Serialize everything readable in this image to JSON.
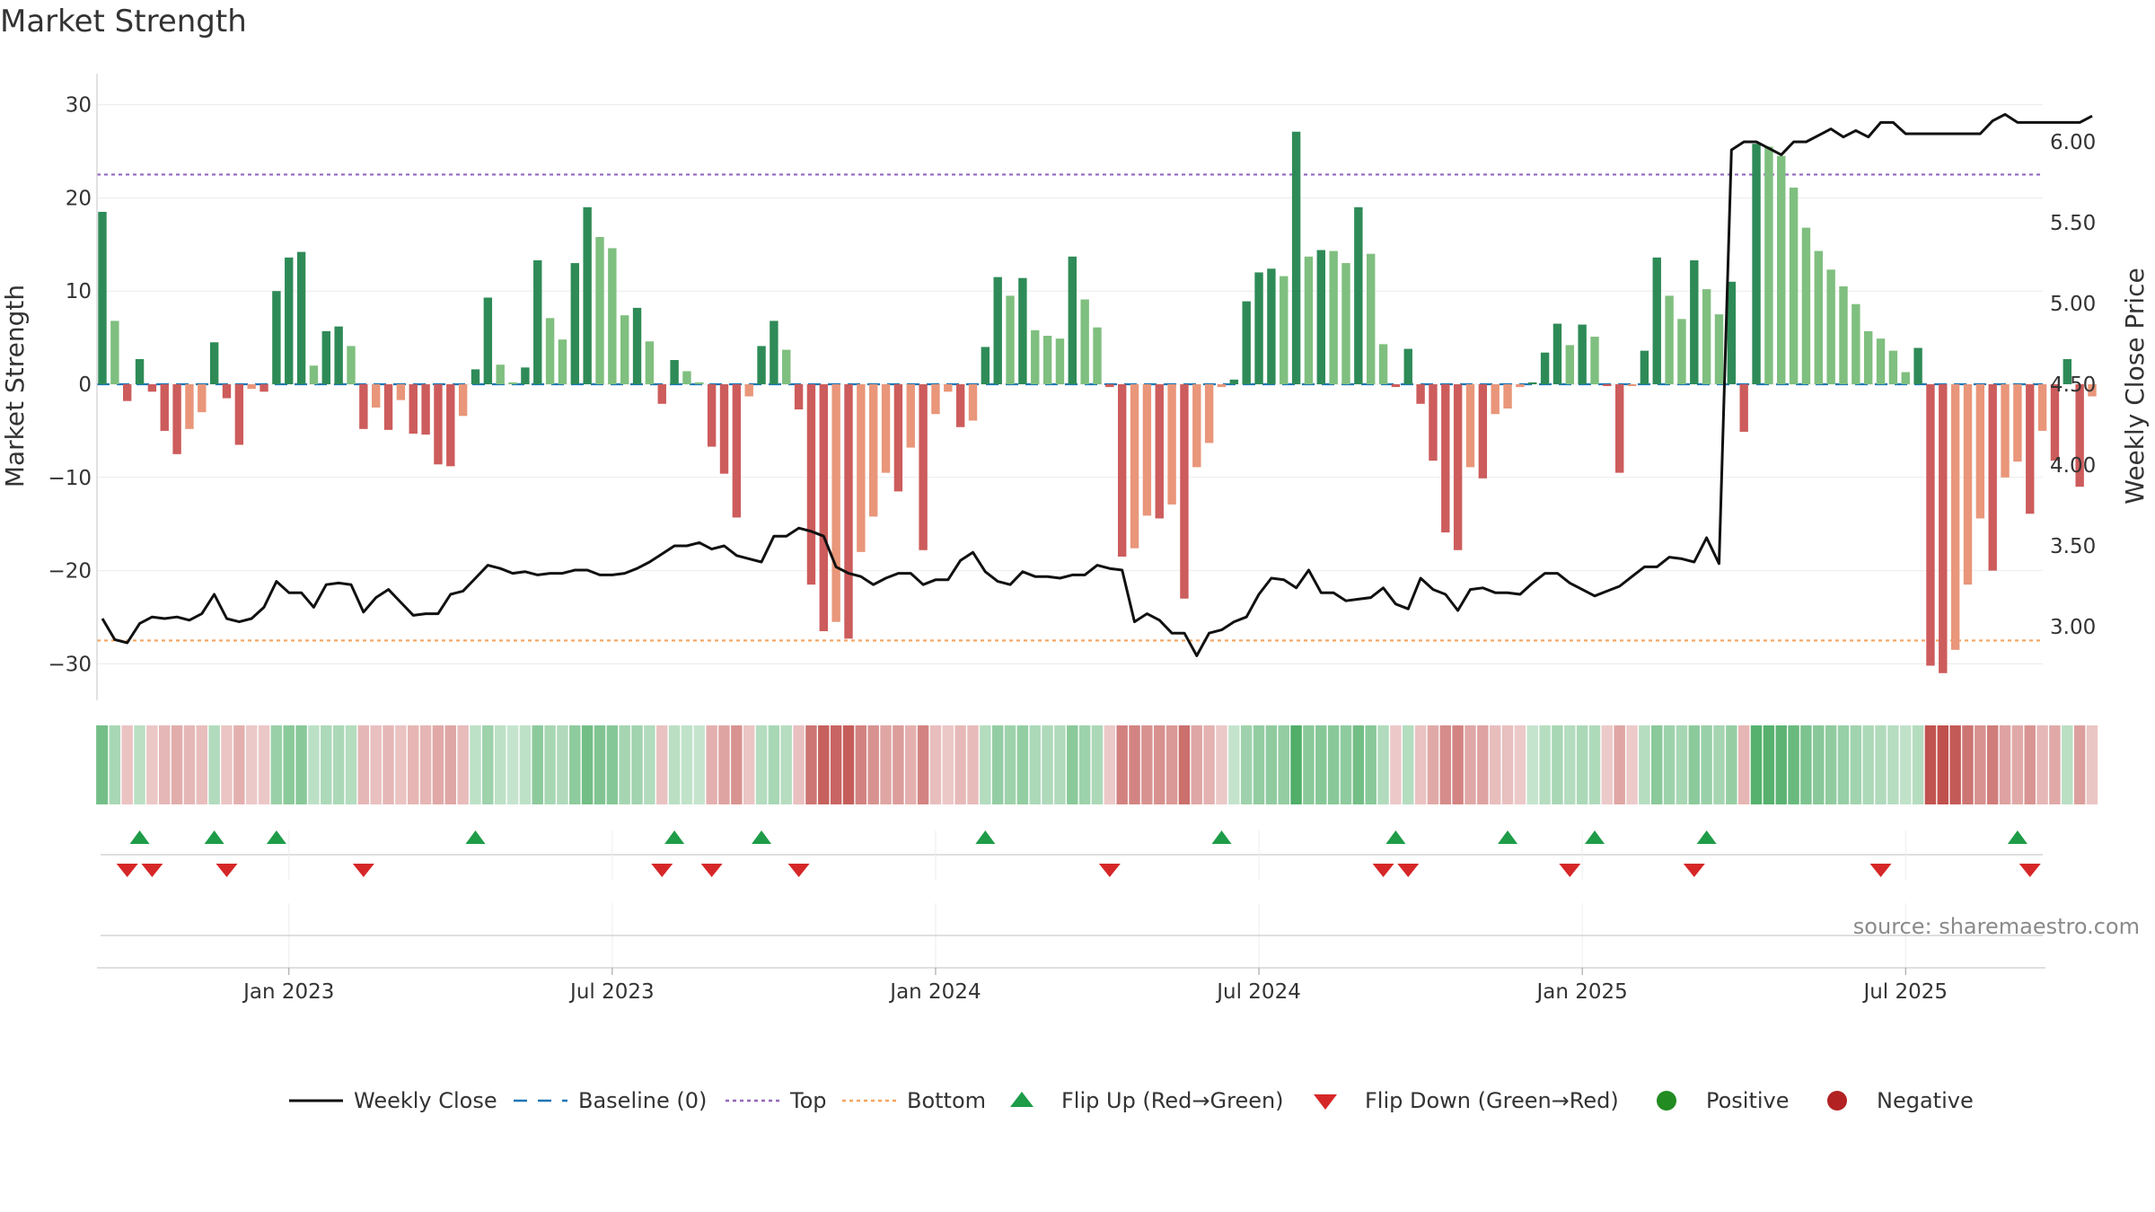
{
  "page": {
    "title": "Market Strength"
  },
  "chart_data": {
    "type": "bar",
    "title": "Market Strength",
    "ylabel_left": "Market Strength",
    "ylabel_right": "Weekly Close Price",
    "ylim_left": [
      -34,
      30.5
    ],
    "ylim_right": [
      2.6,
      6.3
    ],
    "left_ticks": [
      30,
      20,
      10,
      0,
      -10,
      -20,
      -30
    ],
    "left_tick_labels": [
      "30",
      "20",
      "10",
      "0",
      "−10",
      "−20",
      "−30"
    ],
    "right_ticks": [
      6.0,
      5.5,
      5.0,
      4.5,
      4.0,
      3.5,
      3.0
    ],
    "right_tick_labels": [
      "6.00",
      "5.50",
      "5.00",
      "4.50",
      "4.00",
      "3.50",
      "3.00"
    ],
    "x_ticks": [
      {
        "week": 15,
        "label": "Jan 2023"
      },
      {
        "week": 41,
        "label": "Jul 2023"
      },
      {
        "week": 67,
        "label": "Jan 2024"
      },
      {
        "week": 93,
        "label": "Jul 2024"
      },
      {
        "week": 119,
        "label": "Jan 2025"
      },
      {
        "week": 145,
        "label": "Jul 2025"
      }
    ],
    "top_level": 22.5,
    "bottom_level": -27.5,
    "strength": [
      18.5,
      6.8,
      -1.8,
      2.7,
      -0.8,
      -5,
      -7.5,
      -4.8,
      -3,
      4.5,
      -1.5,
      -6.5,
      -0.5,
      -0.8,
      10,
      13.6,
      14.2,
      2,
      5.7,
      6.2,
      4.1,
      -4.8,
      -2.5,
      -4.9,
      -1.7,
      -5.3,
      -5.4,
      -8.6,
      -8.8,
      -3.4,
      1.6,
      9.3,
      2.1,
      0.2,
      1.8,
      13.3,
      7.1,
      4.8,
      13,
      19,
      15.8,
      14.6,
      7.4,
      8.2,
      4.6,
      -2.1,
      2.6,
      1.4,
      0.2,
      -6.7,
      -9.6,
      -14.3,
      -1.3,
      4.1,
      6.8,
      3.7,
      -2.7,
      -21.5,
      -26.5,
      -25.5,
      -27.3,
      -18,
      -14.2,
      -9.5,
      -11.5,
      -6.8,
      -17.8,
      -3.2,
      -0.8,
      -4.6,
      -3.9,
      4,
      11.5,
      9.5,
      11.4,
      5.8,
      5.2,
      4.9,
      13.7,
      9.1,
      6.1,
      -0.3,
      -18.5,
      -17.6,
      -14.1,
      -14.4,
      -12.9,
      -23,
      -8.9,
      -6.3,
      -0.3,
      0.5,
      8.9,
      12,
      12.4,
      11.6,
      27.1,
      13.7,
      14.4,
      14.3,
      13,
      19,
      14,
      4.3,
      -0.3,
      3.8,
      -2.1,
      -8.2,
      -15.9,
      -17.8,
      -8.9,
      -10.1,
      -3.2,
      -2.6,
      -0.3,
      0.2,
      3.4,
      6.5,
      4.2,
      6.4,
      5.1,
      -0.2,
      -9.5,
      -0.2,
      3.6,
      13.6,
      9.5,
      7,
      13.3,
      10.2,
      7.5,
      11,
      -5.1,
      25.8,
      25.5,
      24.5,
      21.1,
      16.8,
      14.3,
      12.3,
      10.5,
      8.6,
      5.7,
      4.9,
      3.6,
      1.3,
      3.9,
      -30.2,
      -31,
      -28.5,
      -21.5,
      -14.4,
      -20,
      -10,
      -8.3,
      -13.9,
      -5,
      -8.2,
      2.7,
      -11,
      -1.3
    ],
    "close": [
      3.05,
      2.92,
      2.9,
      3.02,
      3.06,
      3.05,
      3.06,
      3.04,
      3.08,
      3.2,
      3.05,
      3.03,
      3.05,
      3.12,
      3.28,
      3.21,
      3.21,
      3.12,
      3.26,
      3.27,
      3.26,
      3.09,
      3.18,
      3.23,
      3.15,
      3.07,
      3.08,
      3.08,
      3.2,
      3.22,
      3.3,
      3.38,
      3.36,
      3.33,
      3.34,
      3.32,
      3.33,
      3.33,
      3.35,
      3.35,
      3.32,
      3.32,
      3.33,
      3.36,
      3.4,
      3.45,
      3.5,
      3.5,
      3.52,
      3.48,
      3.5,
      3.44,
      3.42,
      3.4,
      3.56,
      3.56,
      3.61,
      3.59,
      3.56,
      3.37,
      3.33,
      3.31,
      3.26,
      3.3,
      3.33,
      3.33,
      3.26,
      3.29,
      3.29,
      3.41,
      3.46,
      3.34,
      3.28,
      3.26,
      3.34,
      3.31,
      3.31,
      3.3,
      3.32,
      3.32,
      3.38,
      3.36,
      3.35,
      3.03,
      3.08,
      3.04,
      2.96,
      2.96,
      2.82,
      2.96,
      2.98,
      3.03,
      3.06,
      3.2,
      3.3,
      3.29,
      3.24,
      3.35,
      3.21,
      3.21,
      3.16,
      3.17,
      3.18,
      3.24,
      3.14,
      3.11,
      3.3,
      3.23,
      3.2,
      3.1,
      3.23,
      3.24,
      3.21,
      3.21,
      3.2,
      3.27,
      3.33,
      3.33,
      3.27,
      3.23,
      3.19,
      3.22,
      3.25,
      3.31,
      3.37,
      3.37,
      3.43,
      3.42,
      3.4,
      3.55,
      3.39,
      5.95,
      6.0,
      6.0,
      5.96,
      5.92,
      6.0,
      6.0,
      6.04,
      6.08,
      6.03,
      6.07,
      6.03,
      6.12,
      6.12,
      6.05,
      6.05,
      6.05,
      6.05,
      6.05,
      6.05,
      6.05,
      6.13,
      6.17,
      6.12,
      6.12,
      6.12,
      6.12,
      6.12,
      6.12,
      6.16
    ],
    "flip_up_weeks": [
      3,
      9,
      14,
      30,
      46,
      53,
      71,
      90,
      104,
      113,
      120,
      129,
      154
    ],
    "flip_down_weeks": [
      2,
      4,
      10,
      21,
      45,
      49,
      56,
      81,
      103,
      105,
      118,
      128,
      143,
      155
    ],
    "source": "source: sharemaestro.com",
    "colors": {
      "strong_up": "#2e8b57",
      "weak_up": "#7fbf7f",
      "strong_down": "#cd5c5c",
      "weak_down": "#e9967a",
      "close_line": "#111111",
      "baseline": "#1f77b4",
      "top_line": "#9467bd",
      "bottom_line": "#f4a460",
      "flip_up": "#1e9c48",
      "flip_down": "#d62728",
      "positive": "#228b22",
      "negative": "#b22222"
    },
    "legend": [
      {
        "label": "Weekly Close",
        "kind": "line"
      },
      {
        "label": "Baseline (0)",
        "kind": "dash"
      },
      {
        "label": "Top",
        "kind": "dot-purple"
      },
      {
        "label": "Bottom",
        "kind": "dot-orange"
      },
      {
        "label": "Flip Up (Red→Green)",
        "kind": "tri-up"
      },
      {
        "label": "Flip Down (Green→Red)",
        "kind": "tri-down"
      },
      {
        "label": "Positive",
        "kind": "circle-green"
      },
      {
        "label": "Negative",
        "kind": "circle-red"
      }
    ]
  }
}
